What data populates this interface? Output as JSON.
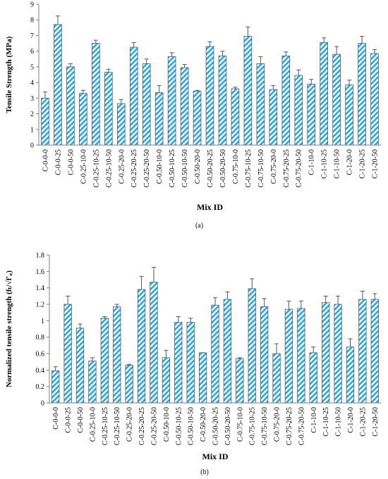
{
  "chart_data": [
    {
      "type": "bar",
      "caption": "(a)",
      "xlabel": "Mix ID",
      "ylabel": "Tensile Strength (MPa)",
      "color": "#29a8e0",
      "categories": [
        "C-0-0-0",
        "C-0-0-25",
        "C-0-0-50",
        "C-0.25-10-0",
        "C-0.25-10-25",
        "C-0.25-10-50",
        "C-0.25-20-0",
        "C-0.25-20-25",
        "C-0.25-20-50",
        "C-0.50-10-0",
        "C-0.50-10-25",
        "C-0.50-10-50",
        "C-0.50-20-0",
        "C-0.50-20-25",
        "C-0.50-20-50",
        "C-0.75-10-0",
        "C-0.75-10-25",
        "C-0.75-10-50",
        "C-0.75-20-0",
        "C-0.75-20-25",
        "C-0.75-20-50",
        "C-1-10-0",
        "C-1-10-25",
        "C-1-10-50",
        "C-1-20-0",
        "C-1-20-25",
        "C-1-20-50"
      ],
      "values": [
        3.0,
        7.7,
        5.0,
        3.3,
        6.5,
        4.65,
        2.65,
        6.25,
        5.2,
        3.35,
        5.65,
        4.95,
        3.45,
        6.3,
        5.7,
        3.6,
        6.95,
        5.2,
        3.55,
        5.7,
        4.45,
        3.9,
        6.55,
        5.8,
        3.85,
        6.5,
        5.85
      ],
      "errors": [
        0.4,
        0.55,
        0.2,
        0.2,
        0.2,
        0.2,
        0.25,
        0.3,
        0.3,
        0.45,
        0.25,
        0.2,
        0.05,
        0.3,
        0.3,
        0.1,
        0.6,
        0.45,
        0.25,
        0.25,
        0.35,
        0.3,
        0.3,
        0.5,
        0.3,
        0.45,
        0.25
      ],
      "ylim": [
        0,
        9
      ],
      "yticks": [
        0,
        1,
        2,
        3,
        4,
        5,
        6,
        7,
        8,
        9
      ]
    },
    {
      "type": "bar",
      "caption": "(b)",
      "xlabel": "Mix ID",
      "ylabel": "Normalized tensile strength (fₜ/√f′꜀)",
      "color": "#29a8e0",
      "categories": [
        "C-0-0-0",
        "C-0-0-25",
        "C-0-0-50",
        "C-0.25-10-0",
        "C-0.25-10-25",
        "C-0.25-10-50",
        "C-0.25-20-0",
        "C-0.25-20-25",
        "C-0.25-20-50",
        "C-0.50-10-0",
        "C-0.50-10-25",
        "C-0.50-10-50",
        "C-0.50-20-0",
        "C-0.50-20-25",
        "C-0.50-20-50",
        "C-0.75-10-0",
        "C-0.75-10-25",
        "C-0.75-10-50",
        "C-0.75-20-0",
        "C-0.75-20-25",
        "C-0.75-20-50",
        "C-1-10-0",
        "C-1-10-25",
        "C-1-10-50",
        "C-1-20-0",
        "C-1-20-25",
        "C-1-20-50"
      ],
      "values": [
        0.39,
        1.2,
        0.91,
        0.51,
        1.03,
        1.17,
        0.46,
        1.38,
        1.47,
        0.55,
        0.98,
        0.98,
        0.61,
        1.19,
        1.26,
        0.54,
        1.39,
        1.17,
        0.6,
        1.14,
        1.15,
        0.61,
        1.22,
        1.2,
        0.68,
        1.26,
        1.26
      ],
      "errors": [
        0.05,
        0.1,
        0.05,
        0.04,
        0.02,
        0.03,
        0.01,
        0.16,
        0.18,
        0.09,
        0.07,
        0.05,
        0,
        0.09,
        0.09,
        0.01,
        0.12,
        0.1,
        0.12,
        0.1,
        0.09,
        0.07,
        0.08,
        0.1,
        0.1,
        0.1,
        0.07
      ],
      "ylim": [
        0,
        1.8
      ],
      "yticks": [
        0,
        0.2,
        0.4,
        0.6,
        0.8,
        1,
        1.2,
        1.4,
        1.6,
        1.8
      ]
    }
  ]
}
